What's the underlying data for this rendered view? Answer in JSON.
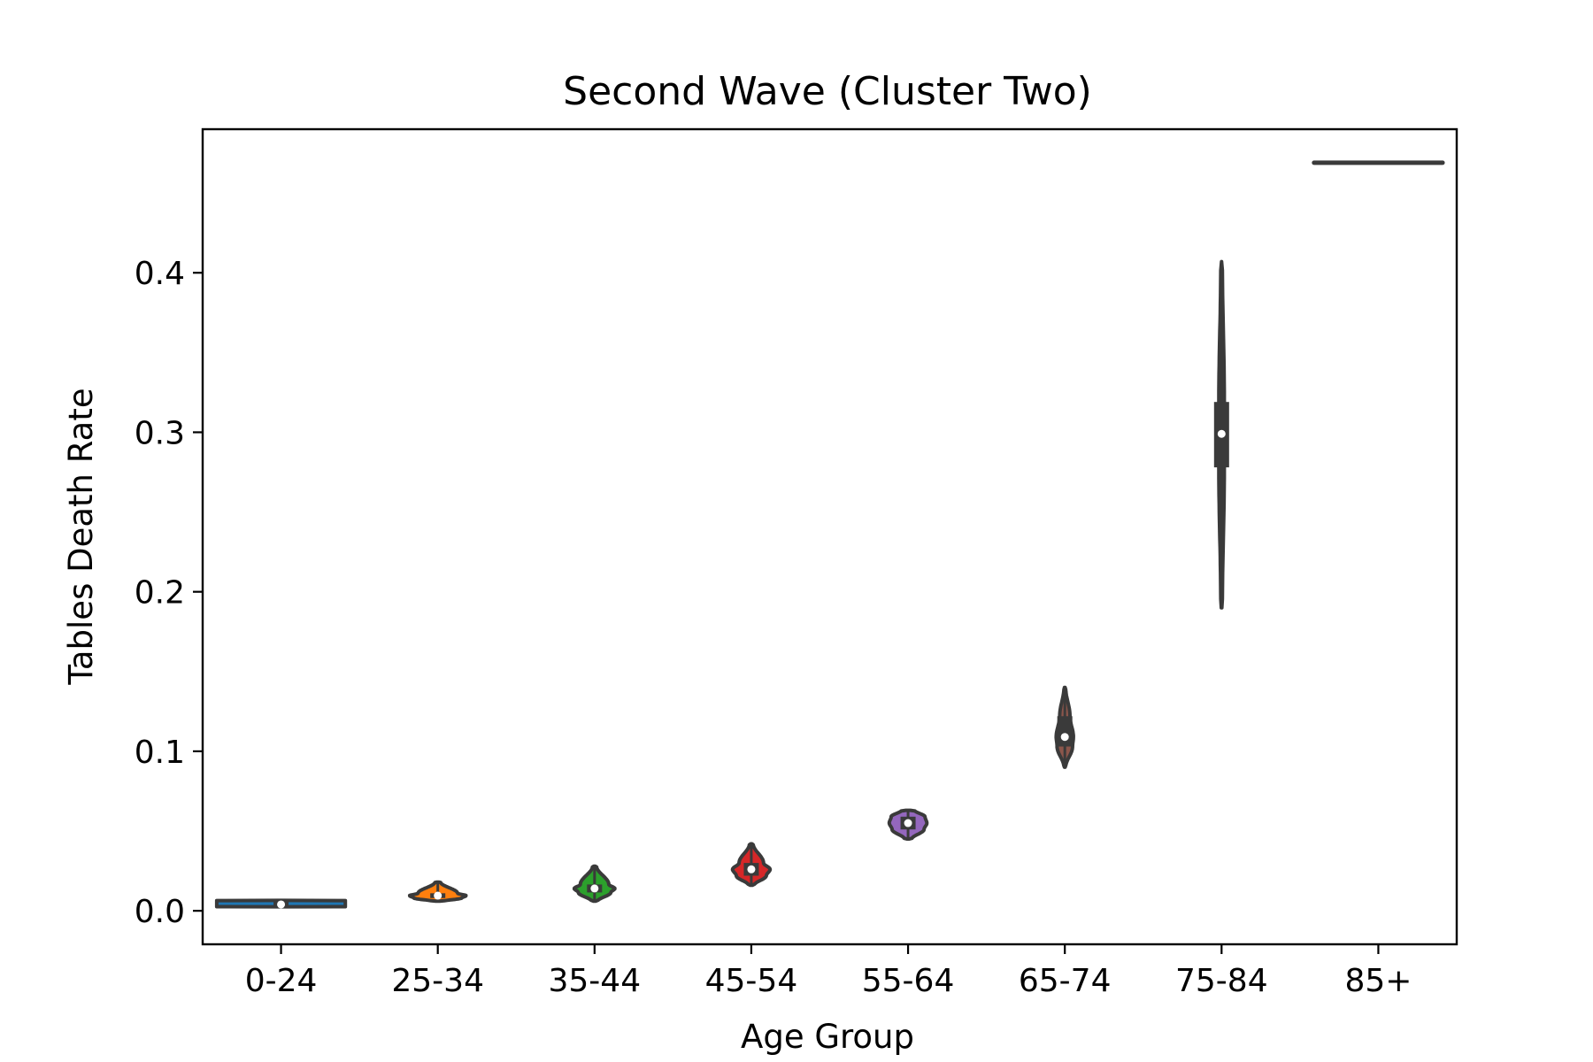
{
  "chart_data": {
    "type": "violin",
    "title": "Second Wave (Cluster Two)",
    "xlabel": "Age Group",
    "ylabel": "Tables Death Rate",
    "ylim": [
      -0.021,
      0.49
    ],
    "yticks": [
      "0.0",
      "0.1",
      "0.2",
      "0.3",
      "0.4"
    ],
    "ytick_values": [
      0.0,
      0.1,
      0.2,
      0.3,
      0.4
    ],
    "categories": [
      "0-24",
      "25-34",
      "35-44",
      "45-54",
      "55-64",
      "65-74",
      "75-84",
      "85+"
    ],
    "grid": false,
    "series": [
      {
        "category": "0-24",
        "min": 0.0025,
        "q1": 0.0025,
        "median": 0.004,
        "q3": 0.0065,
        "max": 0.0065,
        "color": "#1f77b4",
        "width": 0.82,
        "profile": [
          0.25,
          1,
          1,
          1,
          0.25
        ]
      },
      {
        "category": "25-34",
        "min": 0.006,
        "q1": 0.008,
        "median": 0.0095,
        "q3": 0.011,
        "max": 0.018,
        "color": "#ff7f0e",
        "width": 0.36,
        "profile": [
          0.2,
          0.85,
          1,
          0.7,
          0.1
        ]
      },
      {
        "category": "35-44",
        "min": 0.006,
        "q1": 0.0115,
        "median": 0.014,
        "q3": 0.0165,
        "max": 0.028,
        "color": "#2ca02c",
        "width": 0.26,
        "profile": [
          0.15,
          0.8,
          1,
          0.7,
          0.1
        ]
      },
      {
        "category": "45-54",
        "min": 0.016,
        "q1": 0.022,
        "median": 0.026,
        "q3": 0.03,
        "max": 0.042,
        "color": "#d62728",
        "width": 0.24,
        "profile": [
          0.15,
          0.8,
          1,
          0.65,
          0.1
        ]
      },
      {
        "category": "55-64",
        "min": 0.045,
        "q1": 0.051,
        "median": 0.055,
        "q3": 0.059,
        "max": 0.063,
        "color": "#9467bd",
        "width": 0.24,
        "profile": [
          0.2,
          0.85,
          1,
          0.9,
          0.35
        ]
      },
      {
        "category": "65-74",
        "min": 0.09,
        "q1": 0.103,
        "median": 0.109,
        "q3": 0.122,
        "max": 0.14,
        "color": "#8c564b",
        "width": 0.11,
        "profile": [
          0.1,
          0.9,
          1,
          0.6,
          0.1
        ]
      },
      {
        "category": "75-84",
        "min": 0.19,
        "q1": 0.278,
        "median": 0.299,
        "q3": 0.319,
        "max": 0.407,
        "color": "#e377c2",
        "width": 0.05,
        "profile": [
          0.2,
          0.7,
          1,
          0.7,
          0.2
        ]
      },
      {
        "category": "85+",
        "min": 0.469,
        "q1": 0.469,
        "median": 0.469,
        "q3": 0.469,
        "max": 0.469,
        "color": "#7f7f7f",
        "width": 0.82,
        "profile": [
          1,
          1,
          1,
          1,
          1
        ]
      }
    ]
  }
}
